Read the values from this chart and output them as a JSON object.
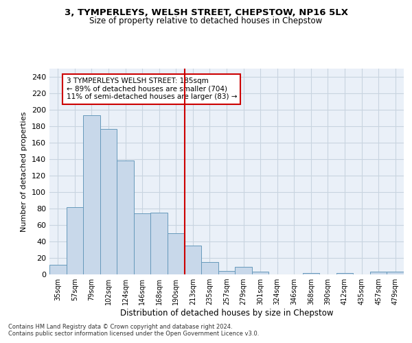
{
  "title1": "3, TYMPERLEYS, WELSH STREET, CHEPSTOW, NP16 5LX",
  "title2": "Size of property relative to detached houses in Chepstow",
  "xlabel": "Distribution of detached houses by size in Chepstow",
  "ylabel": "Number of detached properties",
  "bar_labels": [
    "35sqm",
    "57sqm",
    "79sqm",
    "102sqm",
    "124sqm",
    "146sqm",
    "168sqm",
    "190sqm",
    "213sqm",
    "235sqm",
    "257sqm",
    "279sqm",
    "301sqm",
    "324sqm",
    "346sqm",
    "368sqm",
    "390sqm",
    "412sqm",
    "435sqm",
    "457sqm",
    "479sqm"
  ],
  "bar_values": [
    12,
    82,
    193,
    177,
    138,
    74,
    75,
    50,
    35,
    15,
    4,
    9,
    3,
    0,
    0,
    2,
    0,
    2,
    0,
    3,
    3
  ],
  "bar_color": "#c8d8ea",
  "bar_edge_color": "#6699bb",
  "grid_color": "#c8d4e0",
  "bg_color": "#eaf0f8",
  "vline_x": 7.5,
  "vline_color": "#cc0000",
  "annotation_text": "3 TYMPERLEYS WELSH STREET: 185sqm\n← 89% of detached houses are smaller (704)\n11% of semi-detached houses are larger (83) →",
  "annotation_box_color": "#ffffff",
  "annotation_box_edge": "#cc0000",
  "ylim": [
    0,
    250
  ],
  "yticks": [
    0,
    20,
    40,
    60,
    80,
    100,
    120,
    140,
    160,
    180,
    200,
    220,
    240
  ],
  "footnote1": "Contains HM Land Registry data © Crown copyright and database right 2024.",
  "footnote2": "Contains public sector information licensed under the Open Government Licence v3.0."
}
